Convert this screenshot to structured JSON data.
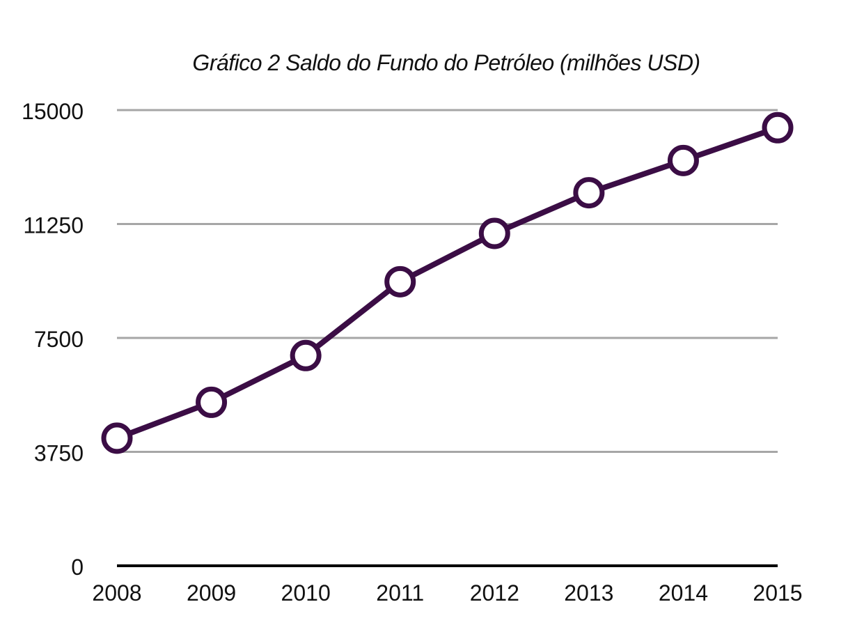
{
  "chart_data": {
    "type": "line",
    "title": "Gráfico 2 Saldo do Fundo do Petróleo (milhões USD)",
    "xlabel": "",
    "ylabel": "",
    "categories": [
      "2008",
      "2009",
      "2010",
      "2011",
      "2012",
      "2013",
      "2014",
      "2015"
    ],
    "series": [
      {
        "values": [
          4200,
          5380,
          6920,
          9350,
          10940,
          12280,
          13340,
          14420
        ]
      }
    ],
    "ylim": [
      0,
      15000
    ],
    "yticks": [
      "0",
      "3750",
      "7500",
      "11250",
      "15000"
    ],
    "grid": true,
    "legend": "none",
    "colors": {
      "line": "#3b0d45",
      "marker_fill": "#ffffff",
      "grid": "#a6a6a6",
      "axis": "#000000"
    }
  }
}
